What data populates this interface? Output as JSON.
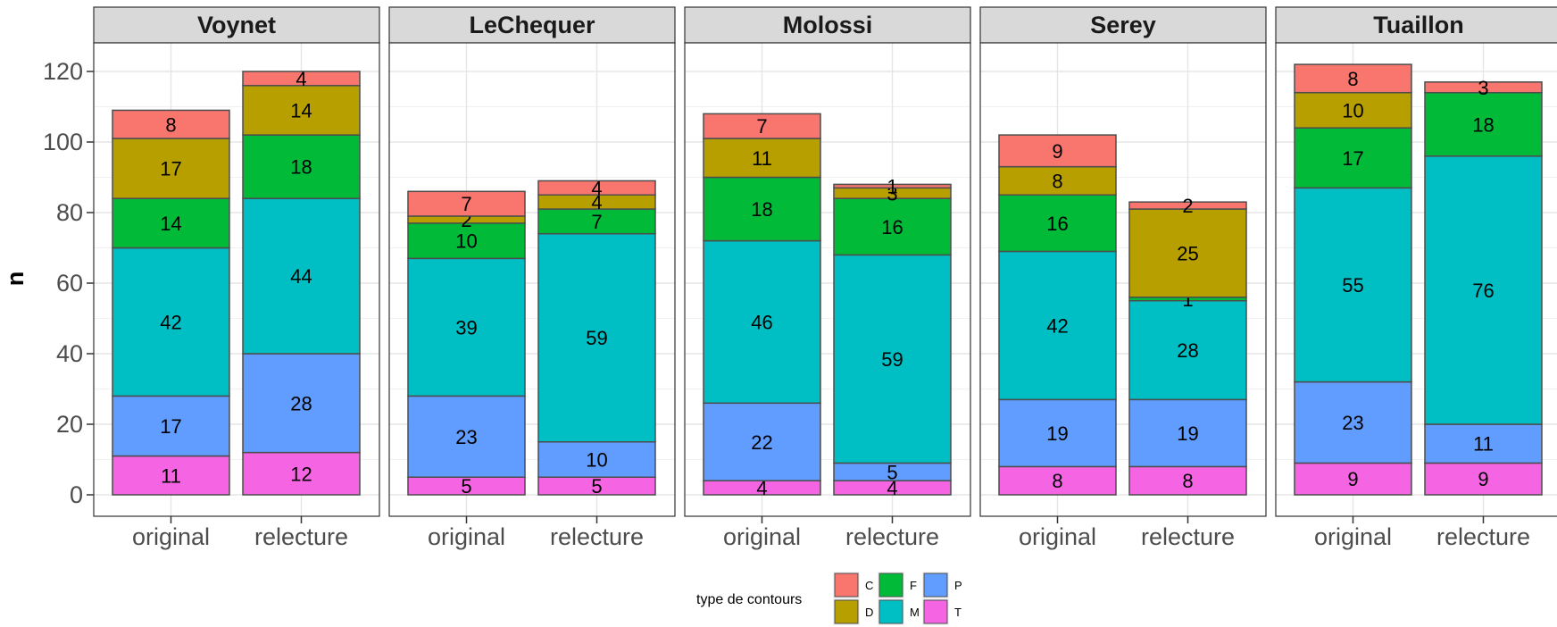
{
  "chart_data": {
    "type": "bar",
    "stacked": true,
    "facet_by": "panel",
    "ylabel": "n",
    "ylim": [
      0,
      128
    ],
    "y_ticks": [
      0,
      20,
      40,
      60,
      80,
      100,
      120
    ],
    "grid": true,
    "categories": [
      "original",
      "relecture"
    ],
    "stack_order_bottom_to_top": [
      "T",
      "P",
      "M",
      "F",
      "D",
      "C"
    ],
    "legend": {
      "title": "type de contours",
      "position": "bottom",
      "items": [
        {
          "key": "C",
          "color": "#F8766D"
        },
        {
          "key": "D",
          "color": "#B79F00"
        },
        {
          "key": "F",
          "color": "#00BA38"
        },
        {
          "key": "M",
          "color": "#00BFC4"
        },
        {
          "key": "P",
          "color": "#619CFF"
        },
        {
          "key": "T",
          "color": "#F564E3"
        }
      ]
    },
    "panels": [
      {
        "name": "Voynet",
        "bars": [
          {
            "category": "original",
            "values": {
              "T": 11,
              "P": 17,
              "M": 42,
              "F": 14,
              "D": 17,
              "C": 8
            }
          },
          {
            "category": "relecture",
            "values": {
              "T": 12,
              "P": 28,
              "M": 44,
              "F": 18,
              "D": 14,
              "C": 4
            }
          }
        ]
      },
      {
        "name": "LeChequer",
        "bars": [
          {
            "category": "original",
            "values": {
              "T": 5,
              "P": 23,
              "M": 39,
              "F": 10,
              "D": 2,
              "C": 7
            }
          },
          {
            "category": "relecture",
            "values": {
              "T": 5,
              "P": 10,
              "M": 59,
              "F": 7,
              "D": 4,
              "C": 4
            }
          }
        ]
      },
      {
        "name": "Molossi",
        "bars": [
          {
            "category": "original",
            "values": {
              "T": 4,
              "P": 22,
              "M": 46,
              "F": 18,
              "D": 11,
              "C": 7
            }
          },
          {
            "category": "relecture",
            "values": {
              "T": 4,
              "P": 5,
              "M": 59,
              "F": 16,
              "D": 3,
              "C": 1
            }
          }
        ]
      },
      {
        "name": "Serey",
        "bars": [
          {
            "category": "original",
            "values": {
              "T": 8,
              "P": 19,
              "M": 42,
              "F": 16,
              "D": 8,
              "C": 9
            }
          },
          {
            "category": "relecture",
            "values": {
              "T": 8,
              "P": 19,
              "M": 28,
              "F": 1,
              "D": 25,
              "C": 2
            }
          }
        ]
      },
      {
        "name": "Tuaillon",
        "bars": [
          {
            "category": "original",
            "values": {
              "T": 9,
              "P": 23,
              "M": 55,
              "F": 17,
              "D": 10,
              "C": 8
            }
          },
          {
            "category": "relecture",
            "values": {
              "T": 9,
              "P": 11,
              "M": 76,
              "F": 18,
              "D": 0,
              "C": 3
            }
          }
        ]
      }
    ]
  }
}
